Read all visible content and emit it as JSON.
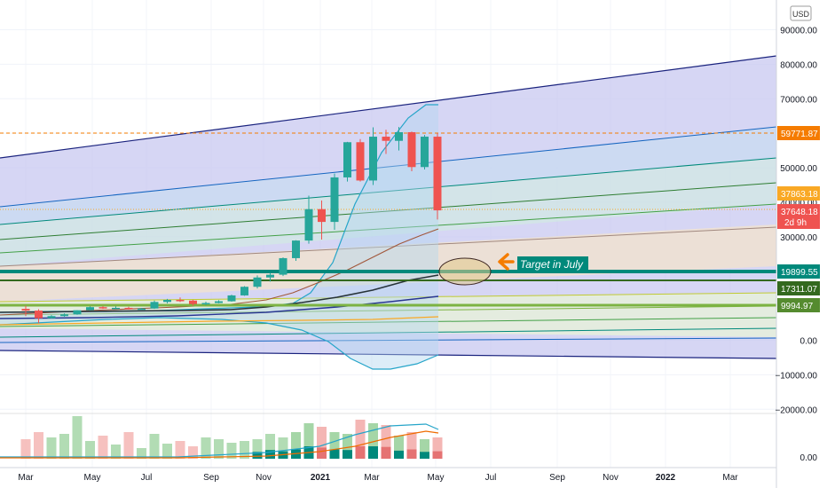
{
  "currency": "USD",
  "annotation": "Target in July",
  "colors": {
    "up": "#26a69a",
    "down": "#ef5350",
    "upVolume": "#a5d6a7",
    "downVolume": "#f4b6b4"
  },
  "chart_data": {
    "type": "candlestick",
    "x_ticks": [
      "Mar",
      "May",
      "Jul",
      "Sep",
      "Nov",
      "2021",
      "Mar",
      "May",
      "Jul",
      "Sep",
      "Nov",
      "2022",
      "Mar"
    ],
    "y_ticks": [
      "90000.00",
      "80000.00",
      "70000.00",
      "60000.00",
      "50000.00",
      "40000.00",
      "30000.00",
      "20000.00",
      "10000.00",
      "0.00",
      "−10000.00",
      "−20000.00"
    ],
    "volume_ticks": [
      "0.00"
    ],
    "price_labels": [
      {
        "label": "59771.87",
        "value": 59771.87,
        "color": "#f57c00"
      },
      {
        "label": "37863.18",
        "value": 37863.18,
        "color": "#f9a825"
      },
      {
        "label": "37648.18",
        "sub": "2d 9h",
        "value": 37648.18,
        "color": "#ef5350"
      },
      {
        "label": "19899.55",
        "value": 19899.55,
        "color": "#00897b"
      },
      {
        "label": "17311.07",
        "value": 17311.07,
        "color": "#33691e"
      },
      {
        "label": "9994.97",
        "value": 9994.97,
        "color": "#558b2f"
      }
    ],
    "candles": [
      {
        "open": 9100,
        "high": 10000,
        "low": 7000,
        "close": 8600
      },
      {
        "open": 8600,
        "high": 9000,
        "low": 5000,
        "close": 6400
      },
      {
        "open": 6400,
        "high": 7300,
        "low": 6300,
        "close": 7000
      },
      {
        "open": 7000,
        "high": 7800,
        "low": 6800,
        "close": 7500
      },
      {
        "open": 7500,
        "high": 8700,
        "low": 7400,
        "close": 8700
      },
      {
        "open": 8700,
        "high": 9800,
        "low": 8600,
        "close": 9600
      },
      {
        "open": 9600,
        "high": 9900,
        "low": 9100,
        "close": 9300
      },
      {
        "open": 9300,
        "high": 9800,
        "low": 9000,
        "close": 9400
      },
      {
        "open": 9400,
        "high": 9700,
        "low": 8900,
        "close": 9100
      },
      {
        "open": 9100,
        "high": 9400,
        "low": 8900,
        "close": 9200
      },
      {
        "open": 9200,
        "high": 11500,
        "low": 9100,
        "close": 11100
      },
      {
        "open": 11100,
        "high": 12000,
        "low": 10700,
        "close": 11700
      },
      {
        "open": 11700,
        "high": 12400,
        "low": 11100,
        "close": 11500
      },
      {
        "open": 11500,
        "high": 11700,
        "low": 10000,
        "close": 10500
      },
      {
        "open": 10500,
        "high": 11200,
        "low": 10200,
        "close": 10800
      },
      {
        "open": 10800,
        "high": 11600,
        "low": 10700,
        "close": 11300
      },
      {
        "open": 11300,
        "high": 13200,
        "low": 11200,
        "close": 13000
      },
      {
        "open": 13000,
        "high": 15700,
        "low": 12900,
        "close": 15500
      },
      {
        "open": 15500,
        "high": 18800,
        "low": 15000,
        "close": 18200
      },
      {
        "open": 18200,
        "high": 19500,
        "low": 17000,
        "close": 19000
      },
      {
        "open": 19000,
        "high": 24000,
        "low": 18600,
        "close": 23800
      },
      {
        "open": 23800,
        "high": 29000,
        "low": 23000,
        "close": 28900
      },
      {
        "open": 28900,
        "high": 41900,
        "low": 28000,
        "close": 38000
      },
      {
        "open": 38000,
        "high": 40500,
        "low": 29200,
        "close": 34300
      },
      {
        "open": 34300,
        "high": 48300,
        "low": 32000,
        "close": 47200
      },
      {
        "open": 47200,
        "high": 57500,
        "low": 46000,
        "close": 57400
      },
      {
        "open": 57400,
        "high": 58300,
        "low": 46000,
        "close": 46300
      },
      {
        "open": 46300,
        "high": 61700,
        "low": 45000,
        "close": 59000
      },
      {
        "open": 59000,
        "high": 61000,
        "low": 54000,
        "close": 57800
      },
      {
        "open": 57800,
        "high": 61800,
        "low": 55000,
        "close": 60300
      },
      {
        "open": 60300,
        "high": 60500,
        "low": 49000,
        "close": 50200
      },
      {
        "open": 50200,
        "high": 59500,
        "low": 49500,
        "close": 59000
      },
      {
        "open": 59000,
        "high": 60000,
        "low": 35000,
        "close": 37648.18
      }
    ],
    "volume": [
      22,
      30,
      24,
      28,
      48,
      20,
      26,
      16,
      30,
      12,
      28,
      17,
      20,
      14,
      24,
      22,
      18,
      20,
      22,
      28,
      24,
      30,
      40,
      36,
      30,
      28,
      44,
      40,
      38,
      26,
      30,
      22,
      24
    ],
    "ylim": [
      -25000,
      95000
    ]
  }
}
